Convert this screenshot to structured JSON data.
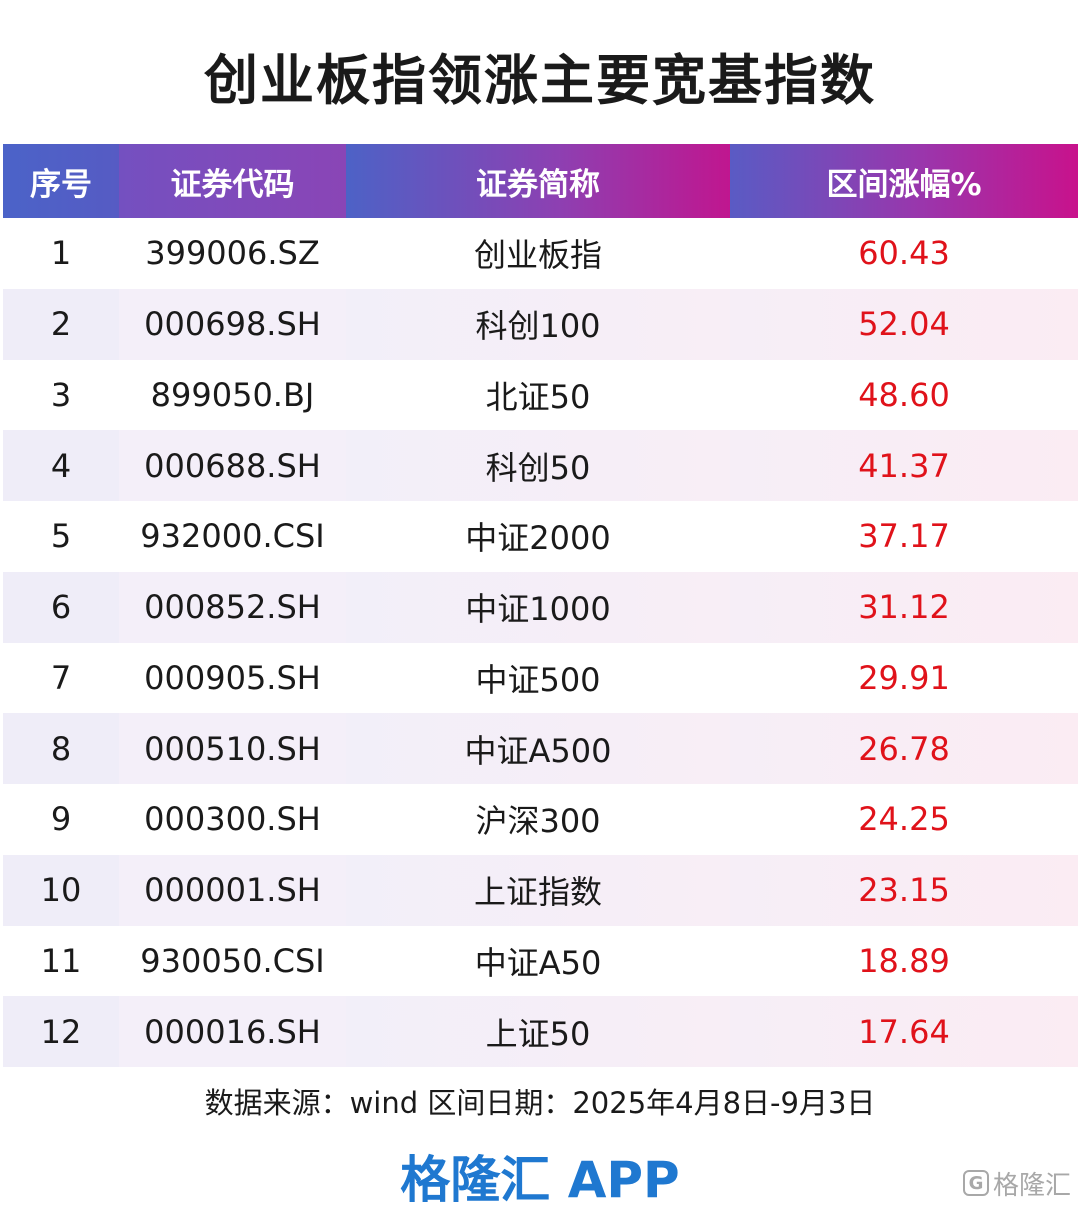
{
  "title": "创业板指领涨主要宽基指数",
  "table": {
    "headers": [
      "序号",
      "证券代码",
      "证券简称",
      "区间涨幅%"
    ],
    "rows": [
      [
        "1",
        "399006.SZ",
        "创业板指",
        "60.43"
      ],
      [
        "2",
        "000698.SH",
        "科创100",
        "52.04"
      ],
      [
        "3",
        "899050.BJ",
        "北证50",
        "48.60"
      ],
      [
        "4",
        "000688.SH",
        "科创50",
        "41.37"
      ],
      [
        "5",
        "932000.CSI",
        "中证2000",
        "37.17"
      ],
      [
        "6",
        "000852.SH",
        "中证1000",
        "31.12"
      ],
      [
        "7",
        "000905.SH",
        "中证500",
        "29.91"
      ],
      [
        "8",
        "000510.SH",
        "中证A500",
        "26.78"
      ],
      [
        "9",
        "000300.SH",
        "沪深300",
        "24.25"
      ],
      [
        "10",
        "000001.SH",
        "上证指数",
        "23.15"
      ],
      [
        "11",
        "930050.CSI",
        "中证A50",
        "18.89"
      ],
      [
        "12",
        "000016.SH",
        "上证50",
        "17.64"
      ]
    ]
  },
  "source": "数据来源：wind   区间日期：2025年4月8日-9月3日",
  "brand": "格隆汇 APP",
  "watermark": {
    "icon": "G",
    "text": "格隆汇"
  },
  "colors": {
    "gain_text": "#e0121a",
    "brand": "#1f78d0",
    "header_start": "#4b63c8",
    "header_end": "#c8158e"
  }
}
